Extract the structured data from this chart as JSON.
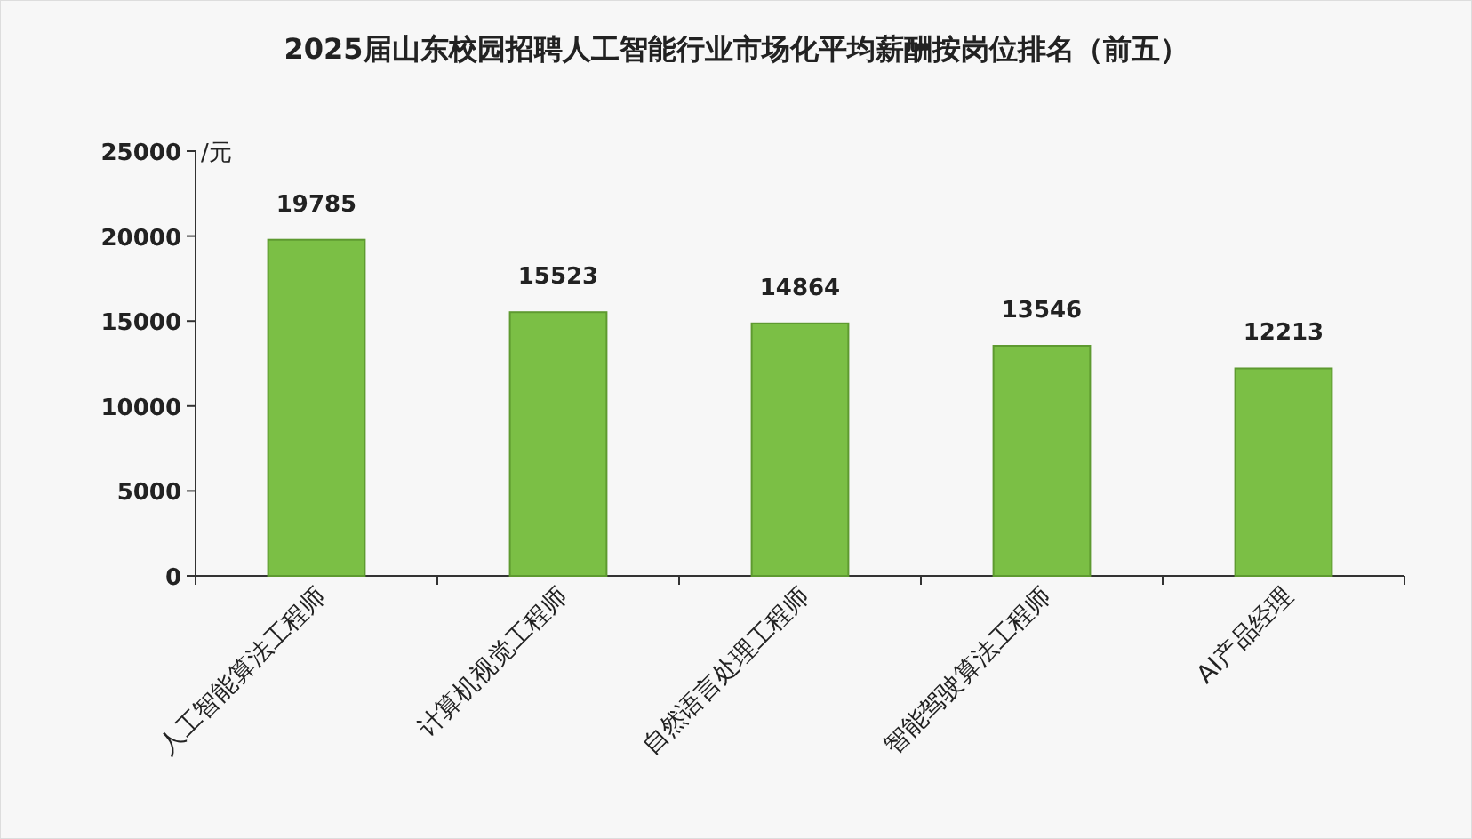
{
  "chart_data": {
    "type": "bar",
    "title": "2025届山东校园招聘人工智能行业市场化平均薪酬按岗位排名（前五）",
    "ylabel": "/元",
    "categories": [
      "人工智能算法工程师",
      "计算机视觉工程师",
      "自然语言处理工程师",
      "智能驾驶算法工程师",
      "AI产品经理"
    ],
    "values": [
      19785,
      15523,
      14864,
      13546,
      12213
    ],
    "color": "#7bbf45",
    "ylim": [
      0,
      25000
    ],
    "yticks": [
      0,
      5000,
      10000,
      15000,
      20000,
      25000
    ],
    "data_labels": true,
    "grid": false
  }
}
